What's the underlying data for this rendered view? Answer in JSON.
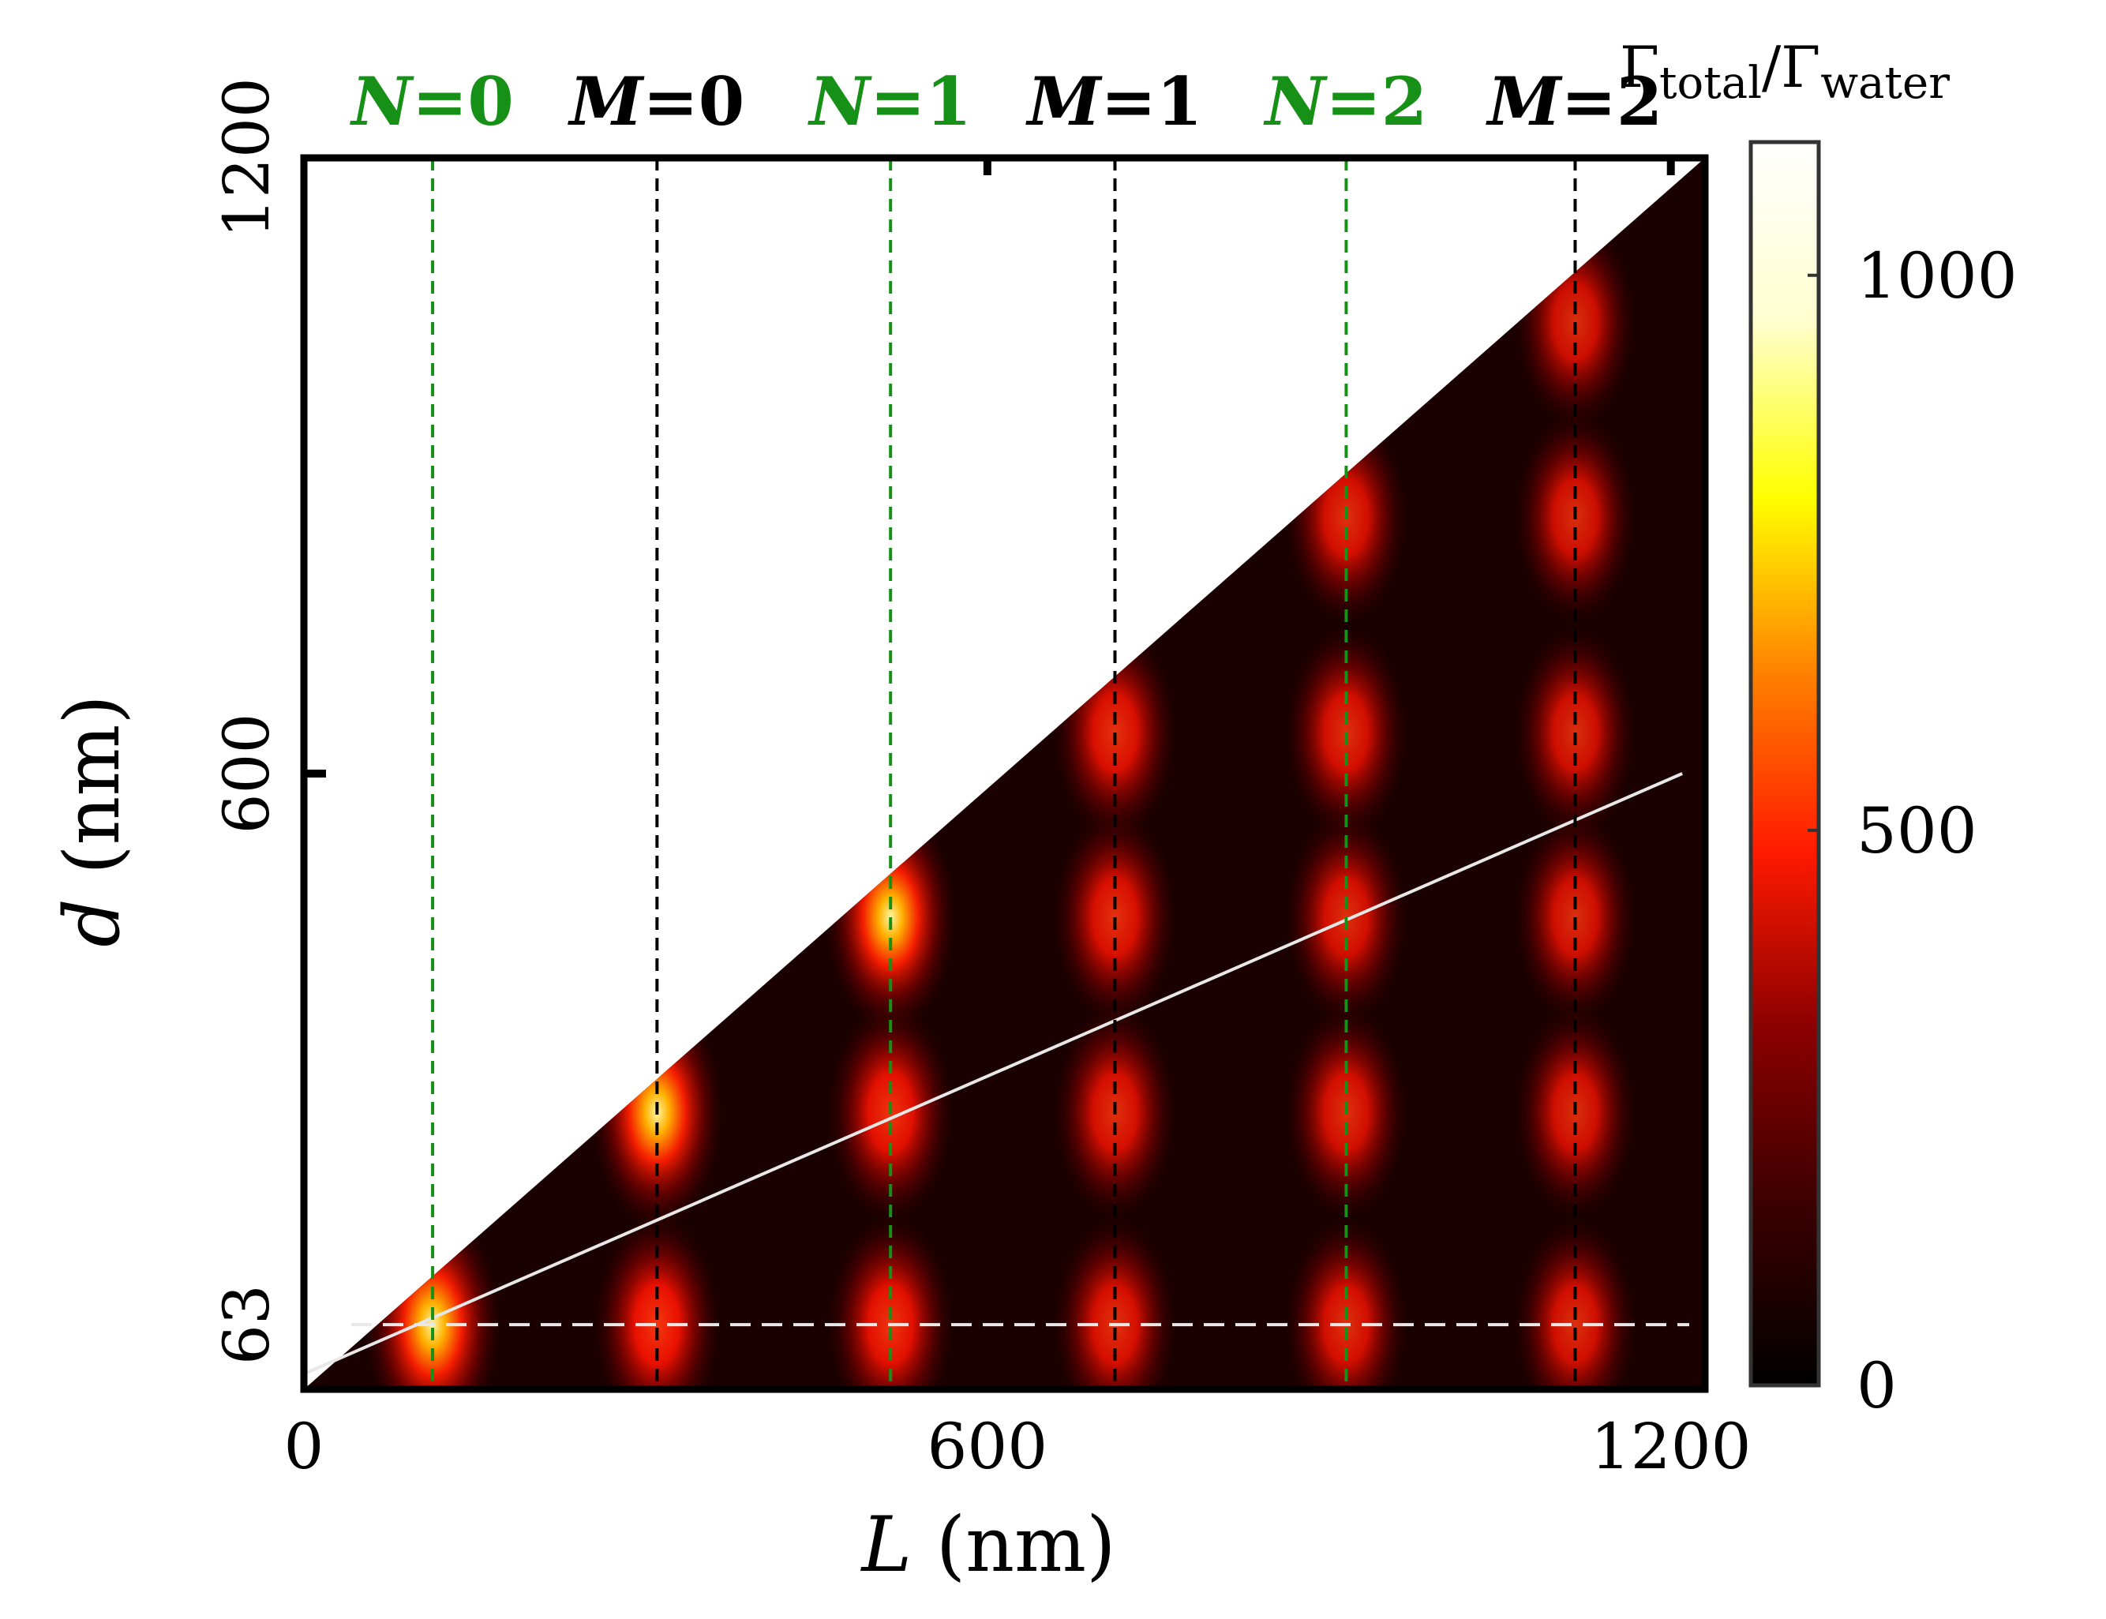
{
  "chart_data": {
    "type": "heatmap",
    "x": {
      "label_var": "L",
      "label_unit": " (nm)",
      "range": [
        0,
        1230
      ],
      "ticks": [
        {
          "value": 0,
          "label": "0"
        },
        {
          "value": 600,
          "label": "600"
        },
        {
          "value": 1200,
          "label": "1200"
        }
      ]
    },
    "y": {
      "label_var": "d",
      "label_unit": " (nm)",
      "range": [
        0,
        1200
      ],
      "ticks": [
        {
          "value": 63,
          "label": "63"
        },
        {
          "value": 600,
          "label": "600"
        },
        {
          "value": 1200,
          "label": "1200"
        }
      ]
    },
    "colorbar": {
      "title_main": "Γ",
      "title_sub1": "total",
      "title_slash": "/Γ",
      "title_sub2": "water",
      "range": [
        0,
        1120
      ],
      "ticks": [
        {
          "value": 0,
          "label": "0"
        },
        {
          "value": 500,
          "label": "500"
        },
        {
          "value": 1000,
          "label": "1000"
        }
      ],
      "colors": [
        "#000000",
        "#3a0000",
        "#8a0000",
        "#ff1a00",
        "#ff8000",
        "#ffff00",
        "#ffffd0",
        "#ffffff"
      ]
    },
    "modes": [
      {
        "var": "N",
        "eq": "=0",
        "L": 113,
        "color": "#179017"
      },
      {
        "var": "M",
        "eq": "=0",
        "L": 310,
        "color": "#000000"
      },
      {
        "var": "N",
        "eq": "=1",
        "L": 515,
        "color": "#179017"
      },
      {
        "var": "M",
        "eq": "=1",
        "L": 712,
        "color": "#000000"
      },
      {
        "var": "N",
        "eq": "=2",
        "L": 915,
        "color": "#179017"
      },
      {
        "var": "M",
        "eq": "=2",
        "L": 1116,
        "color": "#000000"
      }
    ],
    "domain": "d <= L",
    "reference_lines": [
      {
        "kind": "horizontal-dashed",
        "d": 63,
        "color": "#e8e8e8"
      },
      {
        "kind": "line",
        "from": [
          0,
          15
        ],
        "to": [
          1210,
          600
        ],
        "color": "#e8e8e8"
      }
    ],
    "hotspots": [
      {
        "L": 113,
        "d": 63,
        "value": 880
      },
      {
        "L": 310,
        "d": 63,
        "value": 560
      },
      {
        "L": 515,
        "d": 63,
        "value": 520
      },
      {
        "L": 712,
        "d": 63,
        "value": 440
      },
      {
        "L": 915,
        "d": 63,
        "value": 420
      },
      {
        "L": 1116,
        "d": 63,
        "value": 400
      },
      {
        "L": 310,
        "d": 270,
        "value": 760
      },
      {
        "L": 515,
        "d": 270,
        "value": 520
      },
      {
        "L": 712,
        "d": 270,
        "value": 430
      },
      {
        "L": 915,
        "d": 270,
        "value": 410
      },
      {
        "L": 1116,
        "d": 270,
        "value": 390
      },
      {
        "L": 515,
        "d": 460,
        "value": 700
      },
      {
        "L": 712,
        "d": 460,
        "value": 450
      },
      {
        "L": 915,
        "d": 460,
        "value": 410
      },
      {
        "L": 1116,
        "d": 460,
        "value": 390
      },
      {
        "L": 712,
        "d": 640,
        "value": 460
      },
      {
        "L": 915,
        "d": 640,
        "value": 410
      },
      {
        "L": 1116,
        "d": 640,
        "value": 380
      },
      {
        "L": 915,
        "d": 850,
        "value": 420
      },
      {
        "L": 1116,
        "d": 850,
        "value": 380
      },
      {
        "L": 1116,
        "d": 1040,
        "value": 380
      }
    ]
  }
}
